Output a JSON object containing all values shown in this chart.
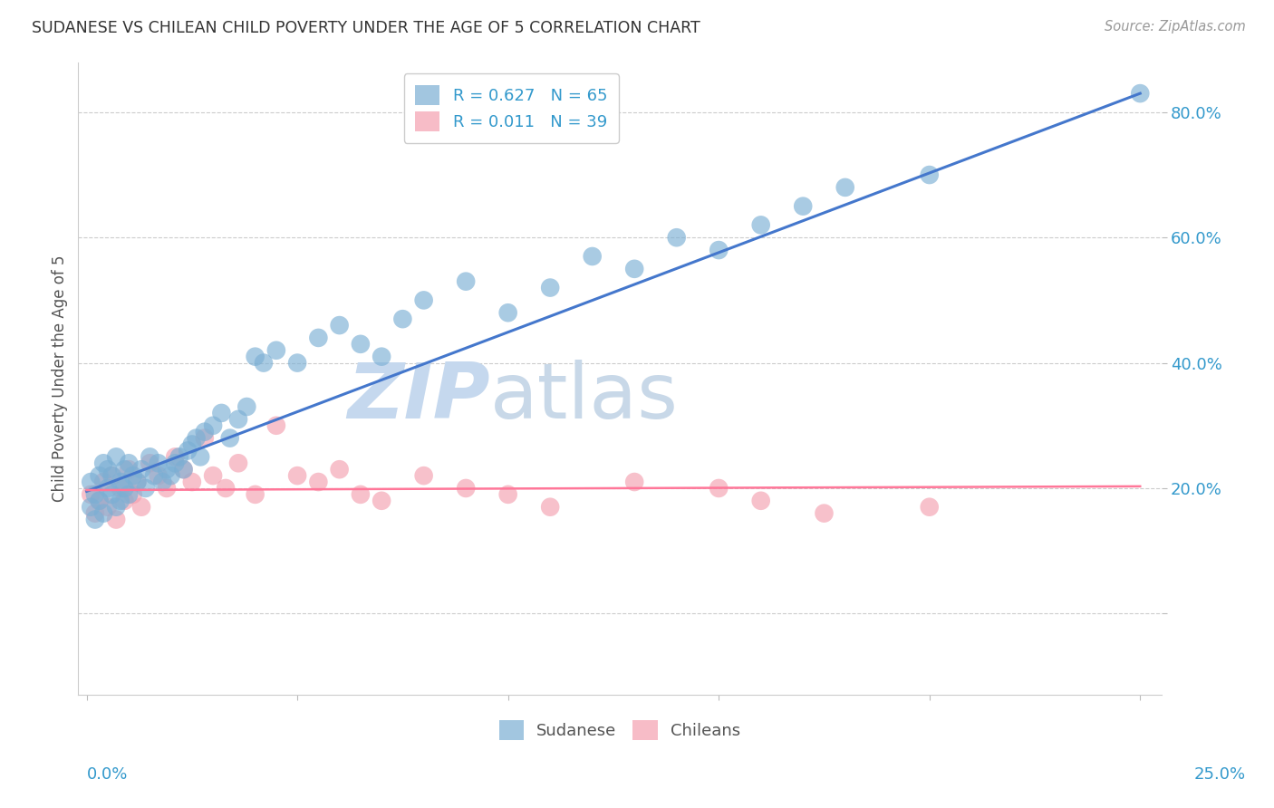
{
  "title": "SUDANESE VS CHILEAN CHILD POVERTY UNDER THE AGE OF 5 CORRELATION CHART",
  "source": "Source: ZipAtlas.com",
  "ylabel": "Child Poverty Under the Age of 5",
  "y_ticks": [
    0.0,
    0.2,
    0.4,
    0.6,
    0.8
  ],
  "y_tick_labels": [
    "",
    "20.0%",
    "40.0%",
    "60.0%",
    "80.0%"
  ],
  "x_lim": [
    -0.002,
    0.255
  ],
  "y_lim": [
    -0.13,
    0.88
  ],
  "x_ticks": [
    0.0,
    0.05,
    0.1,
    0.15,
    0.2,
    0.25
  ],
  "legend_line1": "R = 0.627   N = 65",
  "legend_line2": "R = 0.011   N = 39",
  "sudanese_color": "#7BAFD4",
  "chilean_color": "#F4A0B0",
  "regression_blue": "#4477CC",
  "regression_pink": "#FF7799",
  "watermark_zip": "ZIP",
  "watermark_atlas": "atlas",
  "sudanese_x": [
    0.001,
    0.001,
    0.002,
    0.002,
    0.003,
    0.003,
    0.004,
    0.004,
    0.005,
    0.005,
    0.006,
    0.006,
    0.007,
    0.007,
    0.008,
    0.008,
    0.009,
    0.009,
    0.01,
    0.01,
    0.011,
    0.012,
    0.013,
    0.014,
    0.015,
    0.016,
    0.017,
    0.018,
    0.019,
    0.02,
    0.021,
    0.022,
    0.023,
    0.024,
    0.025,
    0.026,
    0.027,
    0.028,
    0.03,
    0.032,
    0.034,
    0.036,
    0.038,
    0.04,
    0.042,
    0.045,
    0.05,
    0.055,
    0.06,
    0.065,
    0.07,
    0.075,
    0.08,
    0.09,
    0.1,
    0.11,
    0.12,
    0.13,
    0.14,
    0.15,
    0.16,
    0.17,
    0.18,
    0.2,
    0.25
  ],
  "sudanese_y": [
    0.21,
    0.17,
    0.19,
    0.15,
    0.22,
    0.18,
    0.24,
    0.16,
    0.23,
    0.2,
    0.19,
    0.22,
    0.17,
    0.25,
    0.21,
    0.18,
    0.23,
    0.2,
    0.24,
    0.19,
    0.22,
    0.21,
    0.23,
    0.2,
    0.25,
    0.22,
    0.24,
    0.21,
    0.23,
    0.22,
    0.24,
    0.25,
    0.23,
    0.26,
    0.27,
    0.28,
    0.25,
    0.29,
    0.3,
    0.32,
    0.28,
    0.31,
    0.33,
    0.41,
    0.4,
    0.42,
    0.4,
    0.44,
    0.46,
    0.43,
    0.41,
    0.47,
    0.5,
    0.53,
    0.48,
    0.52,
    0.57,
    0.55,
    0.6,
    0.58,
    0.62,
    0.65,
    0.68,
    0.7,
    0.83
  ],
  "chilean_x": [
    0.001,
    0.002,
    0.003,
    0.004,
    0.005,
    0.006,
    0.007,
    0.008,
    0.009,
    0.01,
    0.011,
    0.012,
    0.013,
    0.015,
    0.017,
    0.019,
    0.021,
    0.023,
    0.025,
    0.028,
    0.03,
    0.033,
    0.036,
    0.04,
    0.045,
    0.05,
    0.055,
    0.06,
    0.065,
    0.07,
    0.08,
    0.09,
    0.1,
    0.11,
    0.13,
    0.15,
    0.16,
    0.175,
    0.2
  ],
  "chilean_y": [
    0.19,
    0.16,
    0.18,
    0.21,
    0.17,
    0.22,
    0.15,
    0.2,
    0.18,
    0.23,
    0.19,
    0.21,
    0.17,
    0.24,
    0.22,
    0.2,
    0.25,
    0.23,
    0.21,
    0.28,
    0.22,
    0.2,
    0.24,
    0.19,
    0.3,
    0.22,
    0.21,
    0.23,
    0.19,
    0.18,
    0.22,
    0.2,
    0.19,
    0.17,
    0.21,
    0.2,
    0.18,
    0.16,
    0.17
  ],
  "sudanese_regression_x0": 0.0,
  "sudanese_regression_x1": 0.25,
  "sudanese_regression_y0": 0.195,
  "sudanese_regression_y1": 0.83,
  "chilean_regression_x0": 0.0,
  "chilean_regression_x1": 0.25,
  "chilean_regression_y0": 0.197,
  "chilean_regression_y1": 0.203
}
